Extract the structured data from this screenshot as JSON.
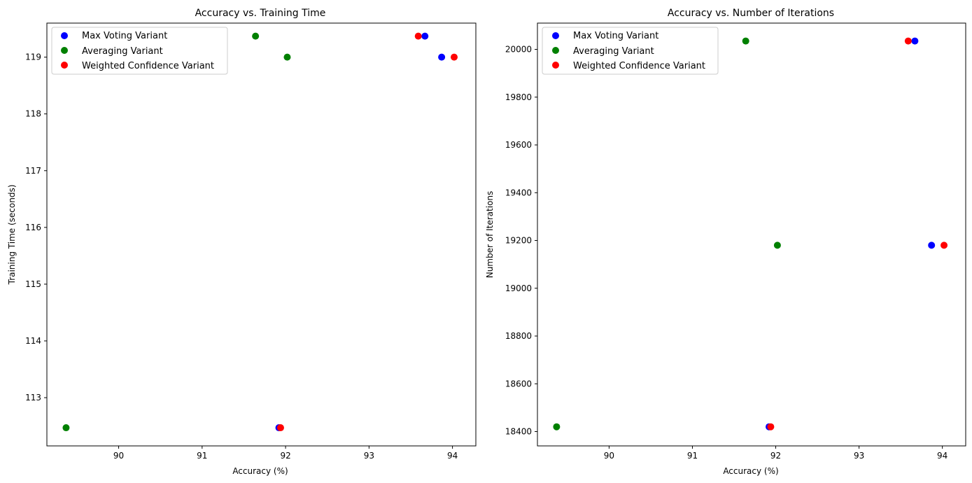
{
  "chart_data": [
    {
      "type": "scatter",
      "title": "Accuracy vs. Training Time",
      "xlabel": "Accuracy (%)",
      "ylabel": "Training Time (seconds)",
      "xlim": [
        89.14,
        94.28
      ],
      "ylim": [
        112.15,
        119.6
      ],
      "xticks": [
        90,
        91,
        92,
        93,
        94
      ],
      "yticks": [
        113,
        114,
        115,
        116,
        117,
        118,
        119
      ],
      "grid": false,
      "legend_position": "upper-left",
      "series": [
        {
          "name": "Max Voting Variant",
          "color": "#0000ff",
          "x": [
            93.67,
            93.87,
            91.92
          ],
          "y": [
            119.37,
            119.0,
            112.47
          ]
        },
        {
          "name": "Averaging Variant",
          "color": "#008000",
          "x": [
            91.64,
            92.02,
            89.37
          ],
          "y": [
            119.37,
            119.0,
            112.47
          ]
        },
        {
          "name": "Weighted Confidence Variant",
          "color": "#ff0000",
          "x": [
            93.59,
            94.02,
            91.94
          ],
          "y": [
            119.37,
            119.0,
            112.47
          ]
        }
      ]
    },
    {
      "type": "scatter",
      "title": "Accuracy vs. Number of Iterations",
      "xlabel": "Accuracy (%)",
      "ylabel": "Number of Iterations",
      "xlim": [
        89.14,
        94.28
      ],
      "ylim": [
        18340,
        20110
      ],
      "xticks": [
        90,
        91,
        92,
        93,
        94
      ],
      "yticks": [
        18400,
        18600,
        18800,
        19000,
        19200,
        19400,
        19600,
        19800,
        20000
      ],
      "grid": false,
      "legend_position": "upper-left",
      "series": [
        {
          "name": "Max Voting Variant",
          "color": "#0000ff",
          "x": [
            93.67,
            93.87,
            91.92
          ],
          "y": [
            20035,
            19180,
            18420
          ]
        },
        {
          "name": "Averaging Variant",
          "color": "#008000",
          "x": [
            91.64,
            92.02,
            89.37
          ],
          "y": [
            20035,
            19180,
            18420
          ]
        },
        {
          "name": "Weighted Confidence Variant",
          "color": "#ff0000",
          "x": [
            93.59,
            94.02,
            91.94
          ],
          "y": [
            20035,
            19180,
            18420
          ]
        }
      ]
    }
  ]
}
